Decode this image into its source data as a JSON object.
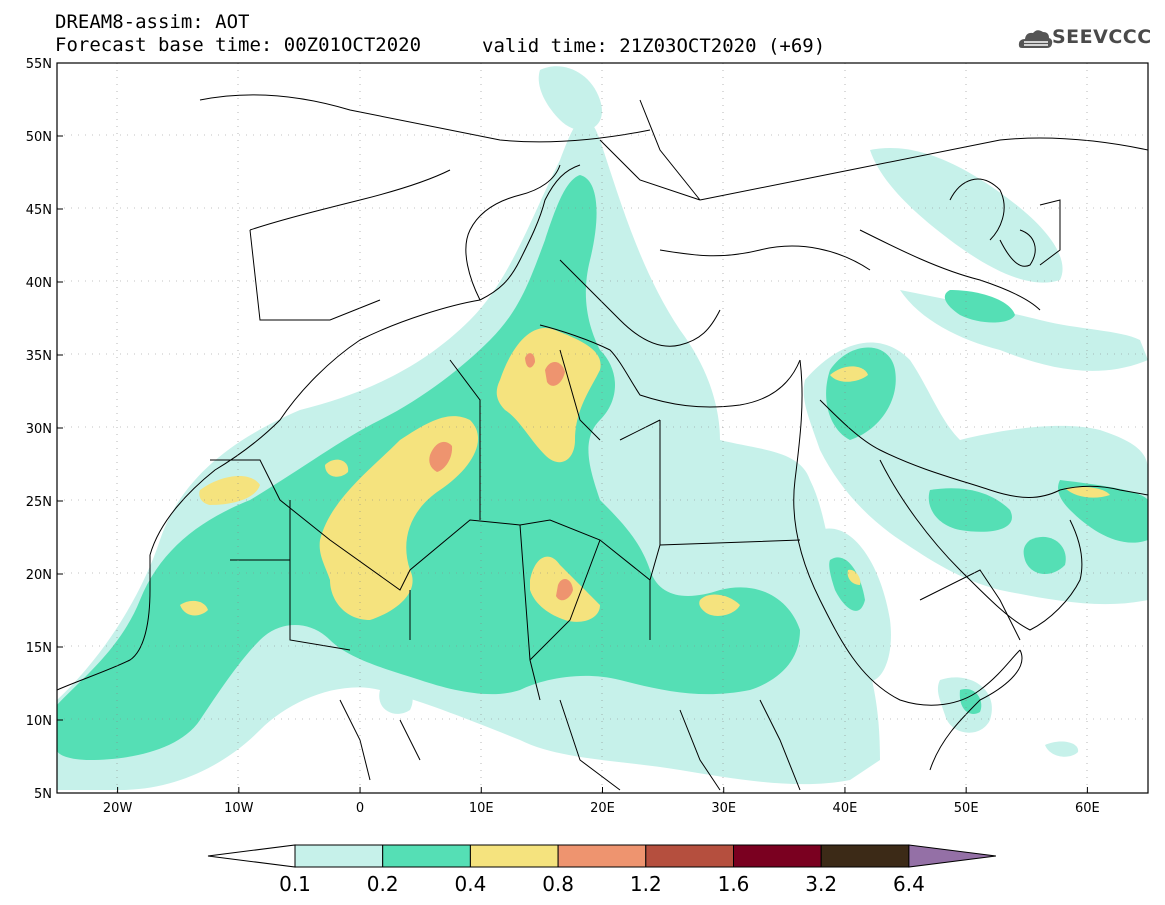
{
  "header": {
    "line1": "DREAM8-assim: AOT",
    "line2": "Forecast base time: 00Z01OCT2020",
    "valid": "valid time: 21Z03OCT2020 (+69)",
    "logo_text": "SEEVCCC"
  },
  "map": {
    "lat_labels": [
      "55N",
      "50N",
      "45N",
      "40N",
      "35N",
      "30N",
      "25N",
      "20N",
      "15N",
      "10N",
      "5N"
    ],
    "lon_labels": [
      "20W",
      "10W",
      "0",
      "10E",
      "20E",
      "30E",
      "40E",
      "50E",
      "60E"
    ],
    "lon_range": [
      -25,
      65
    ],
    "lat_range": [
      5,
      55
    ]
  },
  "colorbar": {
    "labels": [
      "0.1",
      "0.2",
      "0.4",
      "0.8",
      "1.2",
      "1.6",
      "3.2",
      "6.4"
    ],
    "colors": [
      "#c6f1ea",
      "#55dfb5",
      "#f5e37e",
      "#ee946f",
      "#b54f3e",
      "#7a0020",
      "#3c2a17",
      "#9470a6"
    ]
  },
  "colors": {
    "level1": "#c6f1ea",
    "level2": "#55dfb5",
    "level3": "#f5e37e",
    "level4": "#ee946f",
    "coast": "#000000"
  }
}
